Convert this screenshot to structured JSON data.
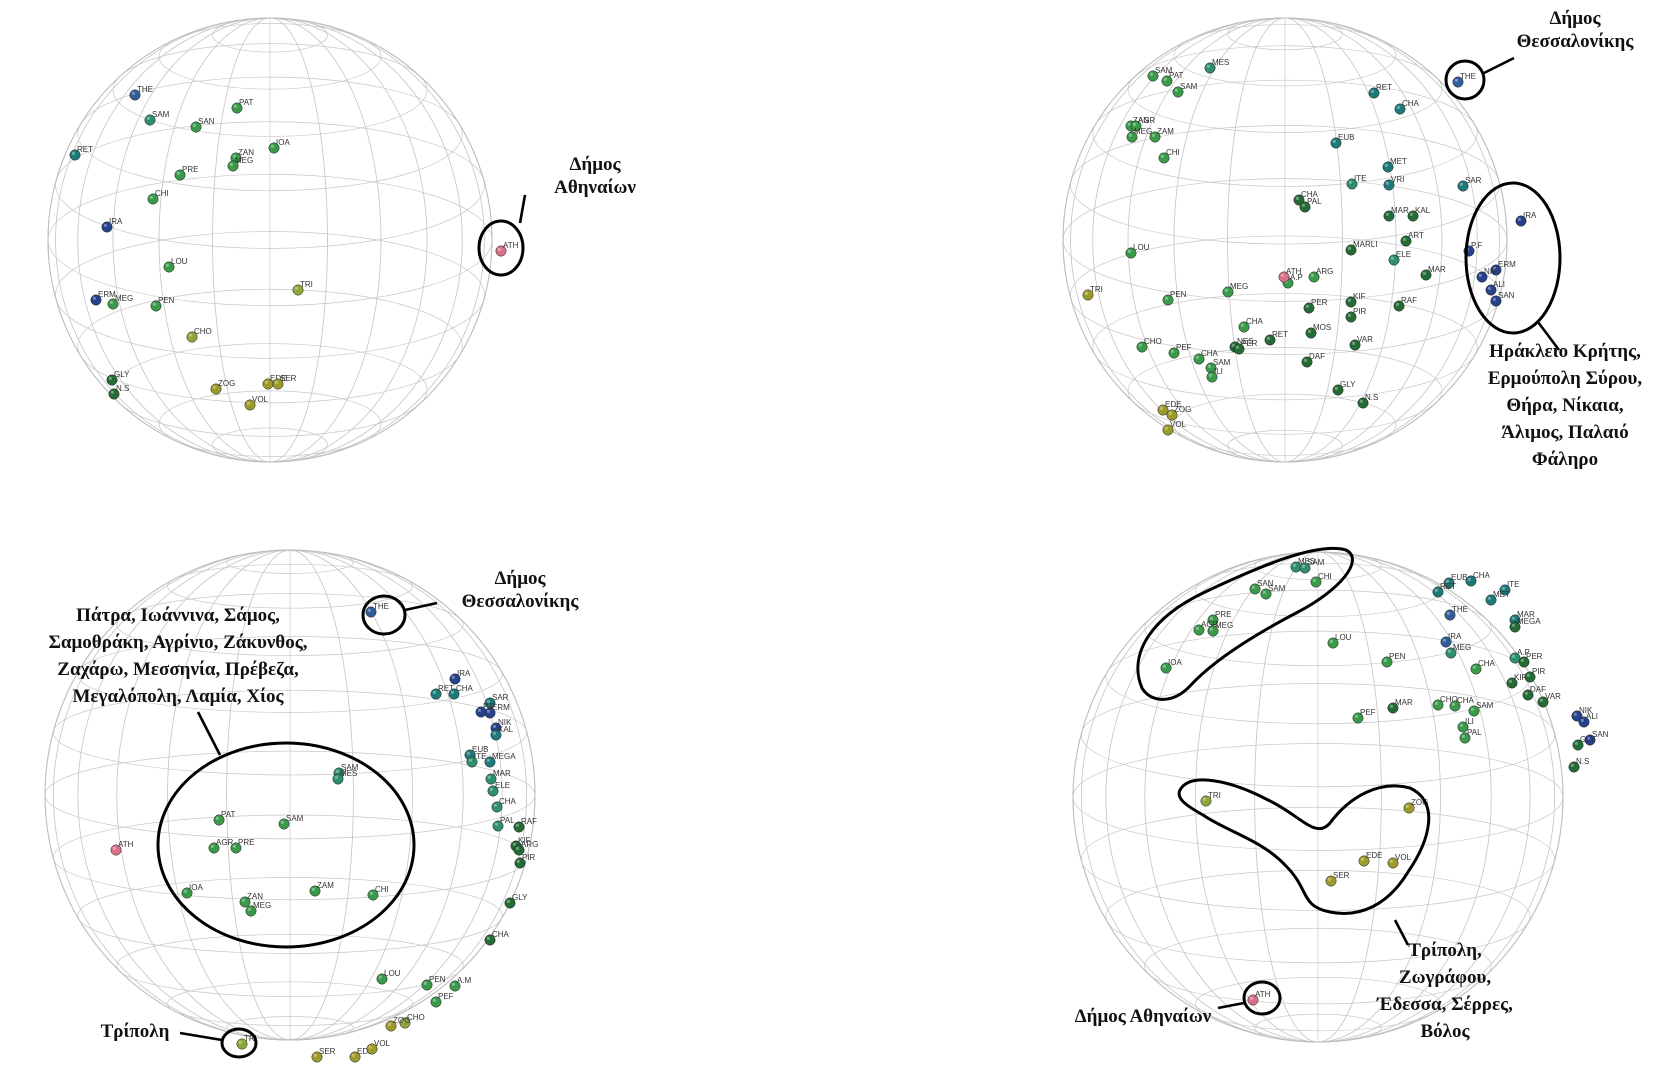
{
  "colors": {
    "dark_blue": "#27418c",
    "blue": "#2f5d9a",
    "teal": "#1e7a78",
    "teal_green": "#2e8f6a",
    "green": "#3a9a4a",
    "dark_green": "#246b35",
    "yellow_green": "#8da83a",
    "olive": "#9c9a2a",
    "pink": "#d8708a"
  },
  "panels": [
    {
      "points": [
        {
          "label": "THE",
          "c": "blue"
        },
        {
          "label": "PAT",
          "c": "green"
        },
        {
          "label": "SAM",
          "c": "teal_green"
        },
        {
          "label": "SAN",
          "c": "green"
        },
        {
          "label": "IOA",
          "c": "green"
        },
        {
          "label": "ZAN",
          "c": "green"
        },
        {
          "label": "MEG",
          "c": "green"
        },
        {
          "label": "PRE",
          "c": "green"
        },
        {
          "label": "CHI",
          "c": "green"
        },
        {
          "label": "RET",
          "c": "teal"
        },
        {
          "label": "IRA",
          "c": "dark_blue"
        },
        {
          "label": "ERM",
          "c": "dark_blue"
        },
        {
          "label": "LOU",
          "c": "green"
        },
        {
          "label": "PEN",
          "c": "green"
        },
        {
          "label": "MEG",
          "c": "green"
        },
        {
          "label": "CHO",
          "c": "yellow_green"
        },
        {
          "label": "GLY",
          "c": "dark_green"
        },
        {
          "label": "N.S",
          "c": "dark_green"
        },
        {
          "label": "ZOG",
          "c": "olive"
        },
        {
          "label": "EDE",
          "c": "olive"
        },
        {
          "label": "SER",
          "c": "olive"
        },
        {
          "label": "VOL",
          "c": "olive"
        },
        {
          "label": "TRI",
          "c": "yellow_green"
        },
        {
          "label": "ATH",
          "c": "pink"
        }
      ],
      "annotations": [
        {
          "id": "athens",
          "lines": [
            "Δήμος",
            "Αθηναίων"
          ]
        }
      ]
    },
    {
      "points": [
        {
          "label": "PAT",
          "c": "green"
        },
        {
          "label": "SAM",
          "c": "green"
        },
        {
          "label": "MES",
          "c": "teal_green"
        },
        {
          "label": "SAM",
          "c": "green"
        },
        {
          "label": "ZAN",
          "c": "green"
        },
        {
          "label": "AGR",
          "c": "green"
        },
        {
          "label": "MEG",
          "c": "green"
        },
        {
          "label": "ZAM",
          "c": "green"
        },
        {
          "label": "CHI",
          "c": "green"
        },
        {
          "label": "RET",
          "c": "teal"
        },
        {
          "label": "CHA",
          "c": "teal"
        },
        {
          "label": "EUB",
          "c": "teal"
        },
        {
          "label": "MET",
          "c": "teal"
        },
        {
          "label": "ITE",
          "c": "teal_green"
        },
        {
          "label": "VRI",
          "c": "teal"
        },
        {
          "label": "SAR",
          "c": "teal"
        },
        {
          "label": "CHA",
          "c": "dark_green"
        },
        {
          "label": "PAL",
          "c": "dark_green"
        },
        {
          "label": "MAR",
          "c": "dark_green"
        },
        {
          "label": "KAL",
          "c": "dark_green"
        },
        {
          "label": "ART",
          "c": "dark_green"
        },
        {
          "label": "LOU",
          "c": "green"
        },
        {
          "label": "MARLI",
          "c": "dark_green"
        },
        {
          "label": "ELE",
          "c": "teal_green"
        },
        {
          "label": "MAR",
          "c": "dark_green"
        },
        {
          "label": "MEG",
          "c": "green"
        },
        {
          "label": "A.P",
          "c": "green"
        },
        {
          "label": "ARG",
          "c": "green"
        },
        {
          "label": "PEN",
          "c": "green"
        },
        {
          "label": "TRI",
          "c": "olive"
        },
        {
          "label": "KIF",
          "c": "dark_green"
        },
        {
          "label": "PER",
          "c": "dark_green"
        },
        {
          "label": "PIR",
          "c": "dark_green"
        },
        {
          "label": "RAF",
          "c": "dark_green"
        },
        {
          "label": "CHA",
          "c": "green"
        },
        {
          "label": "RET",
          "c": "dark_green"
        },
        {
          "label": "MOS",
          "c": "dark_green"
        },
        {
          "label": "NES",
          "c": "dark_green"
        },
        {
          "label": "PER",
          "c": "dark_green"
        },
        {
          "label": "VAR",
          "c": "dark_green"
        },
        {
          "label": "CHO",
          "c": "green"
        },
        {
          "label": "PEF",
          "c": "green"
        },
        {
          "label": "CHA",
          "c": "green"
        },
        {
          "label": "SAM",
          "c": "green"
        },
        {
          "label": "ILI",
          "c": "green"
        },
        {
          "label": "DAF",
          "c": "dark_green"
        },
        {
          "label": "GLY",
          "c": "dark_green"
        },
        {
          "label": "N.S",
          "c": "dark_green"
        },
        {
          "label": "EDE",
          "c": "olive"
        },
        {
          "label": "ZOG",
          "c": "olive"
        },
        {
          "label": "VOL",
          "c": "olive"
        },
        {
          "label": "THE",
          "c": "blue"
        },
        {
          "label": "IRA",
          "c": "dark_blue"
        },
        {
          "label": "P.F",
          "c": "dark_blue"
        },
        {
          "label": "ERM",
          "c": "dark_blue"
        },
        {
          "label": "NIK",
          "c": "dark_blue"
        },
        {
          "label": "ALI",
          "c": "dark_blue"
        },
        {
          "label": "SAN",
          "c": "dark_blue"
        },
        {
          "label": "ATH",
          "c": "pink"
        }
      ],
      "annotations": [
        {
          "id": "thessaloniki",
          "lines": [
            "Δήμος",
            "Θεσσαλονίκης"
          ]
        },
        {
          "id": "cluster",
          "lines": [
            "Ηράκλειο Κρήτης,",
            "Ερμούπολη Σύρου,",
            "Θήρα, Νίκαια,",
            "Άλιμος, Παλαιό",
            "Φάληρο"
          ]
        }
      ]
    },
    {
      "points": [
        {
          "label": "THE",
          "c": "blue"
        },
        {
          "label": "IRA",
          "c": "dark_blue"
        },
        {
          "label": "RET",
          "c": "teal"
        },
        {
          "label": "CHA",
          "c": "teal"
        },
        {
          "label": "SAR",
          "c": "teal"
        },
        {
          "label": "ERM",
          "c": "dark_blue"
        },
        {
          "label": "P.F",
          "c": "dark_blue"
        },
        {
          "label": "NIK",
          "c": "dark_blue"
        },
        {
          "label": "KAL",
          "c": "teal"
        },
        {
          "label": "EUB",
          "c": "teal"
        },
        {
          "label": "MEGA",
          "c": "teal"
        },
        {
          "label": "ITE",
          "c": "teal_green"
        },
        {
          "label": "MAR",
          "c": "teal_green"
        },
        {
          "label": "ELE",
          "c": "teal_green"
        },
        {
          "label": "CHA",
          "c": "teal_green"
        },
        {
          "label": "PAL",
          "c": "teal_green"
        },
        {
          "label": "RAF",
          "c": "dark_green"
        },
        {
          "label": "KIF",
          "c": "dark_green"
        },
        {
          "label": "ARG",
          "c": "dark_green"
        },
        {
          "label": "PIR",
          "c": "dark_green"
        },
        {
          "label": "GLY",
          "c": "dark_green"
        },
        {
          "label": "CHA",
          "c": "dark_green"
        },
        {
          "label": "SAM",
          "c": "teal_green"
        },
        {
          "label": "MES",
          "c": "teal_green"
        },
        {
          "label": "PAT",
          "c": "green"
        },
        {
          "label": "SAM",
          "c": "green"
        },
        {
          "label": "AGR",
          "c": "green"
        },
        {
          "label": "PRE",
          "c": "green"
        },
        {
          "label": "IOA",
          "c": "green"
        },
        {
          "label": "ZAN",
          "c": "green"
        },
        {
          "label": "MEG",
          "c": "green"
        },
        {
          "label": "ZAM",
          "c": "green"
        },
        {
          "label": "CHI",
          "c": "green"
        },
        {
          "label": "ATH",
          "c": "pink"
        },
        {
          "label": "LOU",
          "c": "green"
        },
        {
          "label": "PEN",
          "c": "green"
        },
        {
          "label": "A.M",
          "c": "green"
        },
        {
          "label": "PEF",
          "c": "green"
        },
        {
          "label": "CHO",
          "c": "yellow_green"
        },
        {
          "label": "ZOG",
          "c": "olive"
        },
        {
          "label": "SER",
          "c": "olive"
        },
        {
          "label": "EDE",
          "c": "olive"
        },
        {
          "label": "VOL",
          "c": "olive"
        },
        {
          "label": "TRI",
          "c": "yellow_green"
        }
      ],
      "annotations": [
        {
          "id": "thessaloniki",
          "lines": [
            "Δήμος",
            "Θεσσαλονίκης"
          ]
        },
        {
          "id": "cluster",
          "lines": [
            "Πάτρα, Ιωάννινα, Σάμος,",
            "Σαμοθράκη, Αγρίνιο, Ζάκυνθος,",
            "Ζαχάρω, Μεσσηνία, Πρέβεζα,",
            "Μεγαλόπολη, Λαμία, Χίος"
          ]
        },
        {
          "id": "tripoli",
          "lines": [
            "Τρίπολη"
          ]
        }
      ]
    },
    {
      "points": [
        {
          "label": "MES",
          "c": "teal_green"
        },
        {
          "label": "SAM",
          "c": "teal_green"
        },
        {
          "label": "SAN",
          "c": "green"
        },
        {
          "label": "SAM",
          "c": "green"
        },
        {
          "label": "CHI",
          "c": "green"
        },
        {
          "label": "PRE",
          "c": "green"
        },
        {
          "label": "AGR",
          "c": "green"
        },
        {
          "label": "MEG",
          "c": "green"
        },
        {
          "label": "IOA",
          "c": "green"
        },
        {
          "label": "LOU",
          "c": "green"
        },
        {
          "label": "PEN",
          "c": "green"
        },
        {
          "label": "EUB",
          "c": "teal"
        },
        {
          "label": "RET",
          "c": "teal"
        },
        {
          "label": "CHA",
          "c": "teal"
        },
        {
          "label": "ITE",
          "c": "teal"
        },
        {
          "label": "MET",
          "c": "teal"
        },
        {
          "label": "MAR",
          "c": "teal"
        },
        {
          "label": "MEGA",
          "c": "dark_green"
        },
        {
          "label": "MEG",
          "c": "teal_green"
        },
        {
          "label": "A.P",
          "c": "teal_green"
        },
        {
          "label": "IRA",
          "c": "blue"
        },
        {
          "label": "CHA",
          "c": "green"
        },
        {
          "label": "PER",
          "c": "dark_green"
        },
        {
          "label": "KIF",
          "c": "dark_green"
        },
        {
          "label": "PIR",
          "c": "dark_green"
        },
        {
          "label": "MAR",
          "c": "dark_green"
        },
        {
          "label": "PEF",
          "c": "green"
        },
        {
          "label": "CHO",
          "c": "green"
        },
        {
          "label": "CHA",
          "c": "green"
        },
        {
          "label": "SAM",
          "c": "green"
        },
        {
          "label": "ILI",
          "c": "green"
        },
        {
          "label": "PAL",
          "c": "green"
        },
        {
          "label": "DAF",
          "c": "dark_green"
        },
        {
          "label": "VAR",
          "c": "dark_green"
        },
        {
          "label": "NIK",
          "c": "dark_blue"
        },
        {
          "label": "ALI",
          "c": "dark_blue"
        },
        {
          "label": "SAN",
          "c": "dark_blue"
        },
        {
          "label": "GLY",
          "c": "dark_green"
        },
        {
          "label": "N.S",
          "c": "dark_green"
        },
        {
          "label": "THE",
          "c": "blue"
        },
        {
          "label": "TRI",
          "c": "yellow_green"
        },
        {
          "label": "ZOG",
          "c": "olive"
        },
        {
          "label": "EDE",
          "c": "olive"
        },
        {
          "label": "VOL",
          "c": "olive"
        },
        {
          "label": "SER",
          "c": "olive"
        },
        {
          "label": "ATH",
          "c": "pink"
        }
      ],
      "annotations": [
        {
          "id": "cluster-top",
          "lines": []
        },
        {
          "id": "cluster-bottom",
          "lines": [
            "Τρίπολη,",
            "Ζωγράφου,",
            "Έδεσσα, Σέρρες,",
            "Βόλος"
          ]
        },
        {
          "id": "athens",
          "lines": [
            "Δήμος Αθηναίων"
          ]
        }
      ]
    }
  ]
}
